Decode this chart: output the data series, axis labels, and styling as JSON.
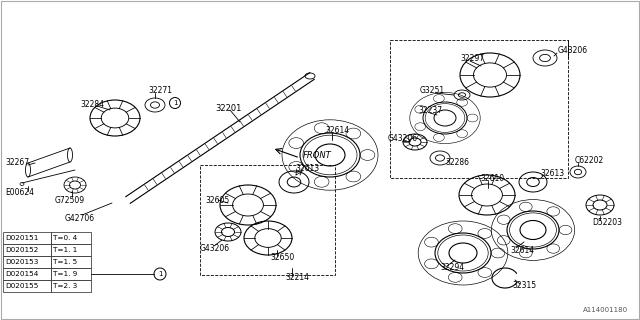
{
  "bg_color": "#ffffff",
  "line_color": "#000000",
  "text_color": "#000000",
  "table_data": [
    [
      "D020151",
      "T=0. 4"
    ],
    [
      "D020152",
      "T=1. 1"
    ],
    [
      "D020153",
      "T=1. 5"
    ],
    [
      "D020154",
      "T=1. 9"
    ],
    [
      "D020155",
      "T=2. 3"
    ]
  ],
  "diagram_id": "A114001180",
  "front_label": "FRONT"
}
